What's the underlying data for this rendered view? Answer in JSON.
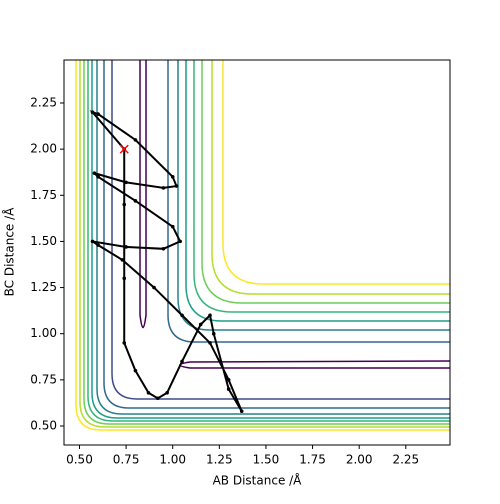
{
  "chart_data": {
    "type": "line",
    "xlabel": "AB Distance /Å",
    "ylabel": "BC Distance /Å",
    "xlim": [
      0.417,
      2.487
    ],
    "ylim": [
      0.397,
      2.483
    ],
    "xticks": [
      {
        "value": 0.5,
        "label": "0.50"
      },
      {
        "value": 0.75,
        "label": "0.75"
      },
      {
        "value": 1.0,
        "label": "1.00"
      },
      {
        "value": 1.25,
        "label": "1.25"
      },
      {
        "value": 1.5,
        "label": "1.50"
      },
      {
        "value": 1.75,
        "label": "1.75"
      },
      {
        "value": 2.0,
        "label": "2.00"
      },
      {
        "value": 2.25,
        "label": "2.25"
      }
    ],
    "yticks": [
      {
        "value": 0.5,
        "label": "0.50"
      },
      {
        "value": 0.75,
        "label": "0.75"
      },
      {
        "value": 1.0,
        "label": "1.00"
      },
      {
        "value": 1.25,
        "label": "1.25"
      },
      {
        "value": 1.5,
        "label": "1.50"
      },
      {
        "value": 1.75,
        "label": "1.75"
      },
      {
        "value": 2.0,
        "label": "2.00"
      },
      {
        "value": 2.25,
        "label": "2.25"
      }
    ],
    "series": [
      {
        "color": "black",
        "x": [
          0.74,
          0.57,
          0.6,
          0.8,
          1.0,
          1.02,
          0.95,
          0.75,
          0.58,
          0.6,
          0.8,
          1.0,
          1.04,
          0.95,
          0.75,
          0.57,
          0.6,
          0.73,
          0.9,
          1.05,
          1.2,
          1.3,
          1.37,
          1.3,
          1.22,
          1.2,
          1.15,
          1.05,
          0.97,
          0.92,
          0.87,
          0.8,
          0.74,
          0.74,
          0.74,
          0.74
        ],
        "values": [
          2.0,
          2.2,
          2.19,
          2.05,
          1.85,
          1.8,
          1.79,
          1.82,
          1.87,
          1.85,
          1.72,
          1.58,
          1.5,
          1.46,
          1.47,
          1.5,
          1.48,
          1.4,
          1.25,
          1.1,
          0.95,
          0.75,
          0.58,
          0.7,
          1.0,
          1.1,
          1.05,
          0.85,
          0.68,
          0.65,
          0.68,
          0.8,
          0.95,
          1.3,
          1.7,
          2.0
        ]
      }
    ],
    "marker": {
      "x": 0.74,
      "y": 2.0,
      "color": "red"
    }
  }
}
